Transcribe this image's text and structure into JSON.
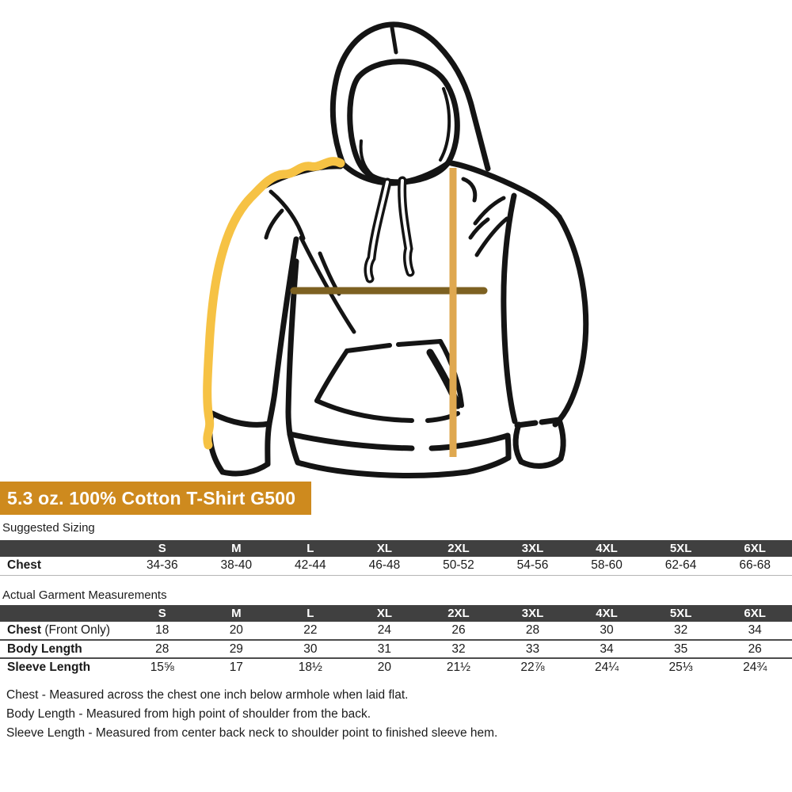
{
  "banner": {
    "label": "5.3 oz. 100% Cotton T-Shirt G500",
    "bg": "#CE8A1E"
  },
  "diagram": {
    "description": "hoodie line drawing with measurement indicator lines",
    "lines": {
      "sleeve_length": {
        "color": "#F6C244"
      },
      "chest_width": {
        "color": "#7D6121"
      },
      "body_length": {
        "color": "#DFA850"
      }
    }
  },
  "suggested_sizing": {
    "title": "Suggested Sizing",
    "columns": [
      "S",
      "M",
      "L",
      "XL",
      "2XL",
      "3XL",
      "4XL",
      "5XL",
      "6XL"
    ],
    "rows": [
      {
        "label": "Chest",
        "label_suffix": "",
        "values": [
          "34-36",
          "38-40",
          "42-44",
          "46-48",
          "50-52",
          "54-56",
          "58-60",
          "62-64",
          "66-68"
        ]
      }
    ]
  },
  "actual_measurements": {
    "title": "Actual Garment Measurements",
    "columns": [
      "S",
      "M",
      "L",
      "XL",
      "2XL",
      "3XL",
      "4XL",
      "5XL",
      "6XL"
    ],
    "rows": [
      {
        "label": "Chest",
        "label_suffix": " (Front Only)",
        "values": [
          "18",
          "20",
          "22",
          "24",
          "26",
          "28",
          "30",
          "32",
          "34"
        ]
      },
      {
        "label": "Body Length",
        "label_suffix": "",
        "values": [
          "28",
          "29",
          "30",
          "31",
          "32",
          "33",
          "34",
          "35",
          "26"
        ]
      },
      {
        "label": "Sleeve Length",
        "label_suffix": "",
        "values": [
          "15⅝",
          "17",
          "18½",
          "20",
          "21½",
          "22⅞",
          "24¼",
          "25⅓",
          "24¾"
        ]
      }
    ]
  },
  "footnotes": [
    "Chest - Measured across the chest one inch below armhole when laid flat.",
    "Body Length - Measured from high point of shoulder from the back.",
    "Sleeve Length - Measured from center back neck to shoulder point to finished sleeve hem."
  ]
}
